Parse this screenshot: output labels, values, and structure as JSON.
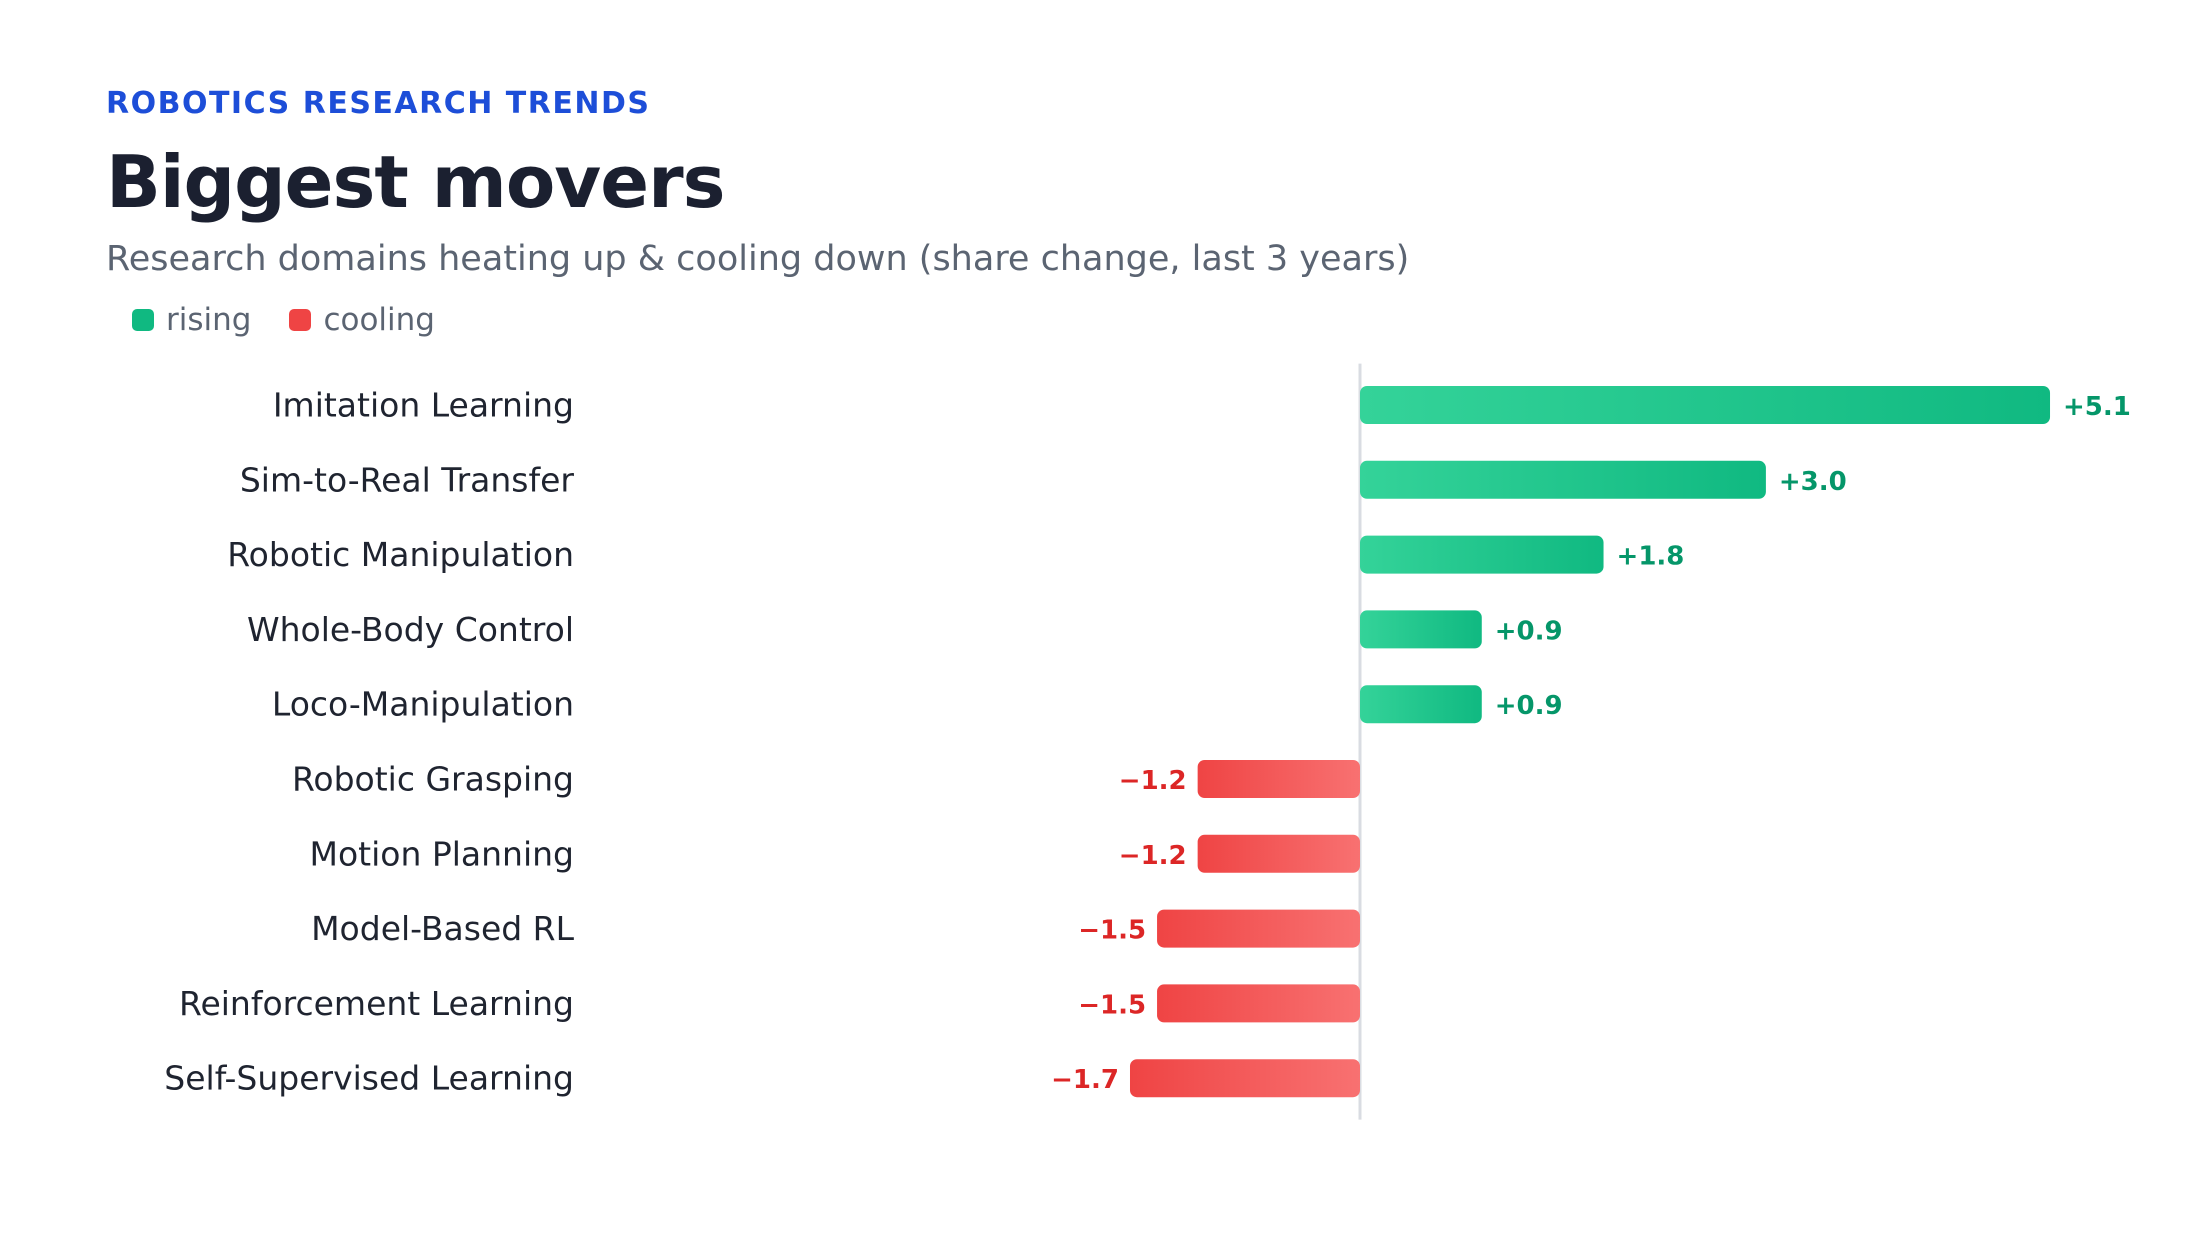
{
  "header": {
    "eyebrow": "ROBOTICS RESEARCH TRENDS",
    "title": "Biggest movers",
    "subtitle": "Research domains heating up & cooling down (share change, last 3 years)"
  },
  "legend": {
    "rising_label": "rising",
    "cooling_label": "cooling"
  },
  "colors": {
    "rising": "#10b981",
    "rising_light": "#34d399",
    "rising_text": "#059669",
    "cooling": "#ef4444",
    "cooling_light": "#f87171",
    "cooling_text": "#dc2626",
    "label_text": "#1f2430",
    "zero_line": "#d9dce2"
  },
  "chart_data": {
    "type": "bar",
    "orientation": "horizontal",
    "categories": [
      "Imitation Learning",
      "Sim-to-Real Transfer",
      "Robotic Manipulation",
      "Whole-Body Control",
      "Loco-Manipulation",
      "Robotic Grasping",
      "Motion Planning",
      "Model-Based RL",
      "Reinforcement Learning",
      "Self-Supervised Learning"
    ],
    "values": [
      5.1,
      3.0,
      1.8,
      0.9,
      0.9,
      -1.2,
      -1.2,
      -1.5,
      -1.5,
      -1.7
    ],
    "value_labels": [
      "+5.1",
      "+3.0",
      "+1.8",
      "+0.9",
      "+0.9",
      "−1.2",
      "−1.2",
      "−1.5",
      "−1.5",
      "−1.7"
    ],
    "title": "Biggest movers",
    "subtitle": "Research domains heating up & cooling down (share change, last 3 years)",
    "xlabel": "",
    "ylabel": "",
    "xlim": [
      -1.7,
      5.1
    ],
    "grid": false,
    "legend_position": "top-left"
  }
}
